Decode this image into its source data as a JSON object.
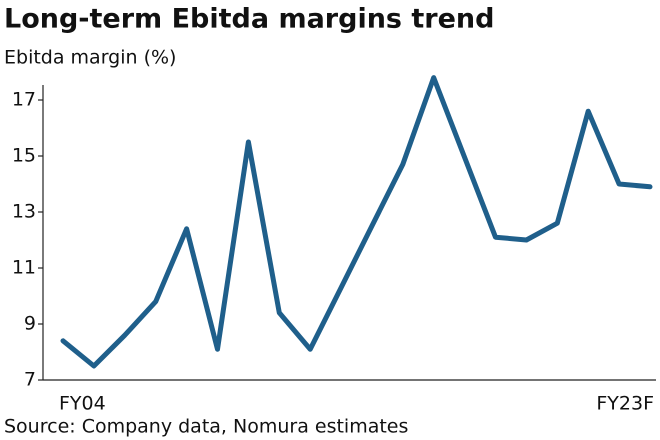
{
  "chart_data": {
    "type": "line",
    "title": "Long-term Ebitda margins trend",
    "y_label": "Ebitda margin (%)",
    "source": "Source: Company data, Nomura estimates",
    "categories": [
      "FY04",
      null,
      null,
      null,
      null,
      null,
      null,
      null,
      null,
      null,
      null,
      null,
      null,
      null,
      null,
      null,
      null,
      null,
      null,
      "FY23F"
    ],
    "values": [
      8.4,
      7.5,
      8.6,
      9.8,
      12.4,
      8.1,
      15.5,
      9.4,
      8.1,
      10.3,
      12.5,
      14.7,
      17.8,
      14.95,
      12.1,
      12.0,
      12.6,
      16.6,
      14.0,
      13.9
    ],
    "color": "#1f5f8b",
    "ylim": [
      7,
      18
    ],
    "yticks": [
      7,
      9,
      11,
      13,
      15,
      17
    ]
  }
}
